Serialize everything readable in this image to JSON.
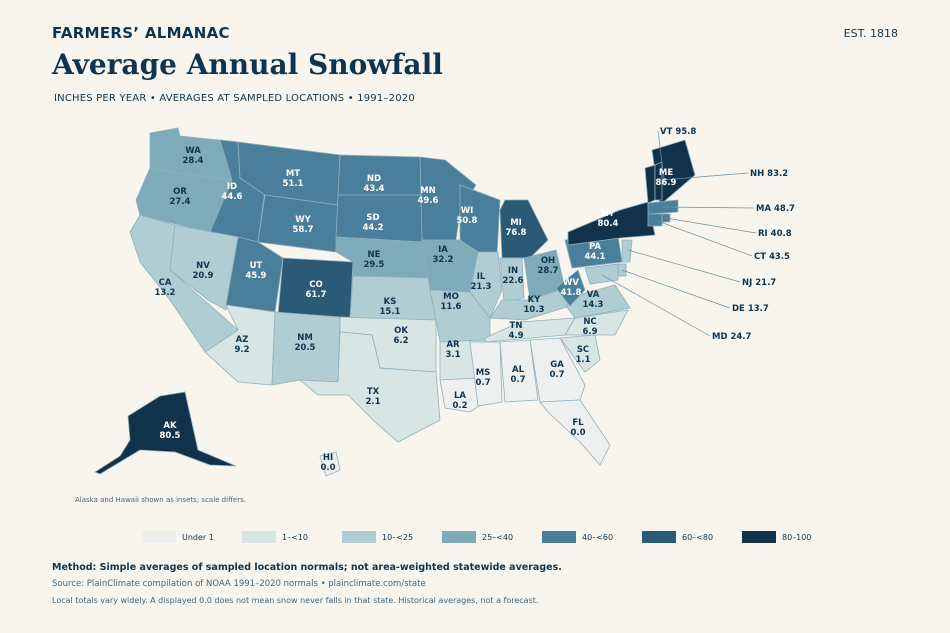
{
  "header": {
    "brand": "FARMERS’ ALMANAC",
    "est": "EST. 1818",
    "title": "Average Annual Snowfall",
    "subtitle": "INCHES PER YEAR  •  AVERAGES AT SAMPLED LOCATIONS  •  1991–2020"
  },
  "legend": [
    {
      "label": "Under 1",
      "color": "#edf0ee"
    },
    {
      "label": "1–<10",
      "color": "#d7e5e3"
    },
    {
      "label": "10–<25",
      "color": "#afcdd2"
    },
    {
      "label": "25–<40",
      "color": "#7eaab9"
    },
    {
      "label": "40–<60",
      "color": "#4a7f9c"
    },
    {
      "label": "60–<80",
      "color": "#2b5a76"
    },
    {
      "label": "80–100",
      "color": "#10334b"
    }
  ],
  "states": [
    {
      "abbr": "WA",
      "value": "28.4"
    },
    {
      "abbr": "OR",
      "value": "27.4"
    },
    {
      "abbr": "CA",
      "value": "13.2"
    },
    {
      "abbr": "ID",
      "value": "44.6"
    },
    {
      "abbr": "NV",
      "value": "20.9"
    },
    {
      "abbr": "MT",
      "value": "51.1"
    },
    {
      "abbr": "WY",
      "value": "58.7"
    },
    {
      "abbr": "UT",
      "value": "45.9"
    },
    {
      "abbr": "AZ",
      "value": "9.2"
    },
    {
      "abbr": "CO",
      "value": "61.7"
    },
    {
      "abbr": "NM",
      "value": "20.5"
    },
    {
      "abbr": "ND",
      "value": "43.4"
    },
    {
      "abbr": "SD",
      "value": "44.2"
    },
    {
      "abbr": "NE",
      "value": "29.5"
    },
    {
      "abbr": "KS",
      "value": "15.1"
    },
    {
      "abbr": "OK",
      "value": "6.2"
    },
    {
      "abbr": "TX",
      "value": "2.1"
    },
    {
      "abbr": "MN",
      "value": "49.6"
    },
    {
      "abbr": "IA",
      "value": "32.2"
    },
    {
      "abbr": "MO",
      "value": "11.6"
    },
    {
      "abbr": "AR",
      "value": "3.1"
    },
    {
      "abbr": "LA",
      "value": "0.2"
    },
    {
      "abbr": "WI",
      "value": "50.8"
    },
    {
      "abbr": "IL",
      "value": "21.3"
    },
    {
      "abbr": "MI",
      "value": "76.8"
    },
    {
      "abbr": "IN",
      "value": "22.6"
    },
    {
      "abbr": "OH",
      "value": "28.7"
    },
    {
      "abbr": "KY",
      "value": "10.3"
    },
    {
      "abbr": "TN",
      "value": "4.9"
    },
    {
      "abbr": "MS",
      "value": "0.7"
    },
    {
      "abbr": "AL",
      "value": "0.7"
    },
    {
      "abbr": "GA",
      "value": "0.7"
    },
    {
      "abbr": "FL",
      "value": "0.0"
    },
    {
      "abbr": "SC",
      "value": "1.1"
    },
    {
      "abbr": "NC",
      "value": "6.9"
    },
    {
      "abbr": "VA",
      "value": "14.3"
    },
    {
      "abbr": "WV",
      "value": "41.8"
    },
    {
      "abbr": "PA",
      "value": "44.1"
    },
    {
      "abbr": "NY",
      "value": "80.4"
    },
    {
      "abbr": "ME",
      "value": "86.9"
    },
    {
      "abbr": "AK",
      "value": "80.5"
    },
    {
      "abbr": "HI",
      "value": "0.0"
    },
    {
      "abbr": "VT",
      "value": "95.8"
    },
    {
      "abbr": "NH",
      "value": "83.2"
    },
    {
      "abbr": "MA",
      "value": "48.7"
    },
    {
      "abbr": "RI",
      "value": "40.8"
    },
    {
      "abbr": "CT",
      "value": "43.5"
    },
    {
      "abbr": "NJ",
      "value": "21.7"
    },
    {
      "abbr": "DE",
      "value": "13.7"
    },
    {
      "abbr": "MD",
      "value": "24.7"
    }
  ],
  "inset_note": "Alaska and Hawaii shown as insets; scale differs.",
  "footer": {
    "method": "Method: Simple averages of sampled location normals; not area-weighted statewide averages.",
    "source": "Source: PlainClimate compilation of NOAA 1991–2020 normals • plainclimate.com/state",
    "note": "Local totals vary widely. A displayed 0.0 does not mean snow never falls in that state. Historical averages, not a forecast."
  }
}
